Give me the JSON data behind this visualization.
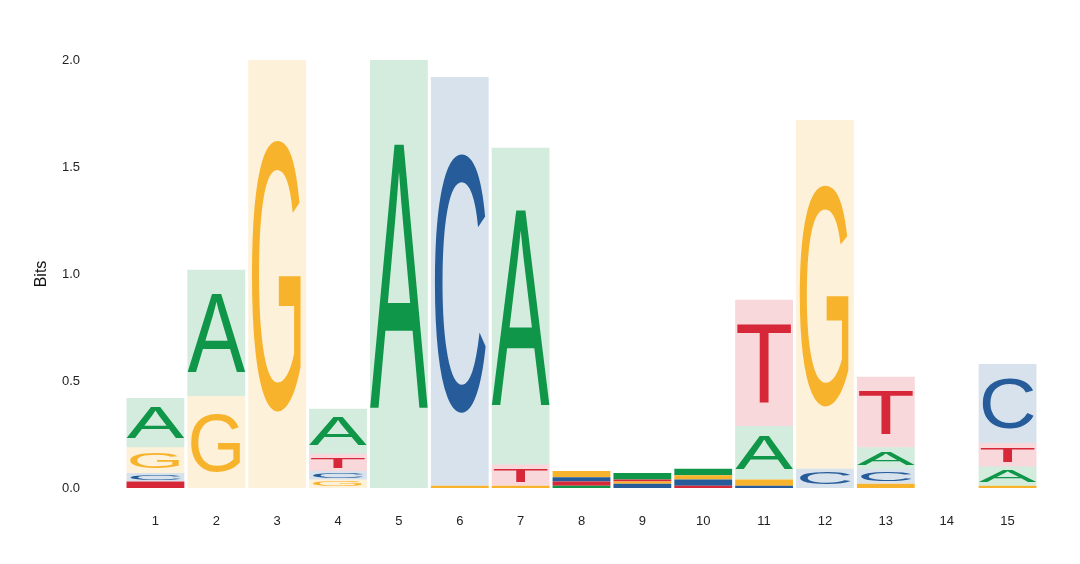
{
  "chart_data": {
    "type": "bar",
    "stacked": true,
    "x": [
      1,
      2,
      3,
      4,
      5,
      6,
      7,
      8,
      9,
      10,
      11,
      12,
      13,
      14,
      15
    ],
    "xlim": [
      1,
      15
    ],
    "xticks": [
      1,
      2,
      3,
      4,
      5,
      6,
      7,
      8,
      9,
      10,
      11,
      12,
      13,
      14,
      15
    ],
    "series": [
      {
        "values": [
          0.03,
          0.43,
          2.0,
          0.04,
          2.0,
          0.01,
          0.01,
          0.01,
          0.02,
          0.01,
          0.01,
          0.09,
          0.02,
          null,
          0.01
        ],
        "colors": [
          "#d62839",
          "#f7b32b",
          "#f7b32b",
          "#f7b32b",
          "#109648",
          "#f7b32b",
          "#f7b32b",
          "#109648",
          "#255c99",
          "#d62839",
          "#255c99",
          "#255c99",
          "#f7b32b",
          null,
          "#f7b32b"
        ],
        "value_labels": [
          null,
          "G",
          "G",
          "G",
          "A",
          null,
          null,
          null,
          null,
          null,
          null,
          "C",
          null,
          null,
          null
        ]
      },
      {
        "values": [
          0.04,
          0.59,
          null,
          0.04,
          null,
          1.91,
          0.1,
          0.02,
          0.01,
          0.03,
          0.03,
          1.63,
          0.07,
          null,
          0.09
        ],
        "colors": [
          "#255c99",
          "#109648",
          null,
          "#255c99",
          null,
          "#255c99",
          "#d62839",
          "#d62839",
          "#f7b32b",
          "#255c99",
          "#f7b32b",
          "#f7b32b",
          "#255c99",
          null,
          "#109648"
        ],
        "value_labels": [
          "C",
          "A",
          null,
          "C",
          null,
          "C",
          "T",
          null,
          null,
          null,
          null,
          "G",
          "C",
          null,
          "A"
        ]
      },
      {
        "values": [
          0.12,
          null,
          null,
          0.08,
          null,
          null,
          1.48,
          0.02,
          0.01,
          0.02,
          0.25,
          null,
          0.1,
          null,
          0.11
        ],
        "colors": [
          "#f7b32b",
          null,
          null,
          "#d62839",
          null,
          null,
          "#109648",
          "#255c99",
          "#d62839",
          "#f7b32b",
          "#109648",
          null,
          "#109648",
          null,
          "#d62839"
        ],
        "value_labels": [
          "G",
          null,
          null,
          "T",
          null,
          null,
          "A",
          null,
          null,
          null,
          "A",
          null,
          "A",
          null,
          "T"
        ]
      },
      {
        "values": [
          0.23,
          null,
          null,
          0.21,
          null,
          null,
          null,
          0.03,
          0.03,
          0.03,
          0.59,
          null,
          0.33,
          null,
          0.37
        ],
        "colors": [
          "#109648",
          null,
          null,
          "#109648",
          null,
          null,
          null,
          "#f7b32b",
          "#109648",
          "#109648",
          "#d62839",
          null,
          "#d62839",
          null,
          "#255c99"
        ],
        "value_labels": [
          "A",
          null,
          null,
          "A",
          null,
          null,
          null,
          null,
          null,
          null,
          "T",
          null,
          "T",
          null,
          "C"
        ]
      }
    ],
    "ylabel": "Bits",
    "ylim": [
      0,
      2
    ],
    "yticks": [
      {
        "value": 0,
        "label": "0.0"
      },
      0.5,
      {
        "value": 1,
        "label": "1.0"
      },
      1.5,
      {
        "value": 2,
        "label": "2.0"
      }
    ],
    "grid": false,
    "legend": false
  }
}
